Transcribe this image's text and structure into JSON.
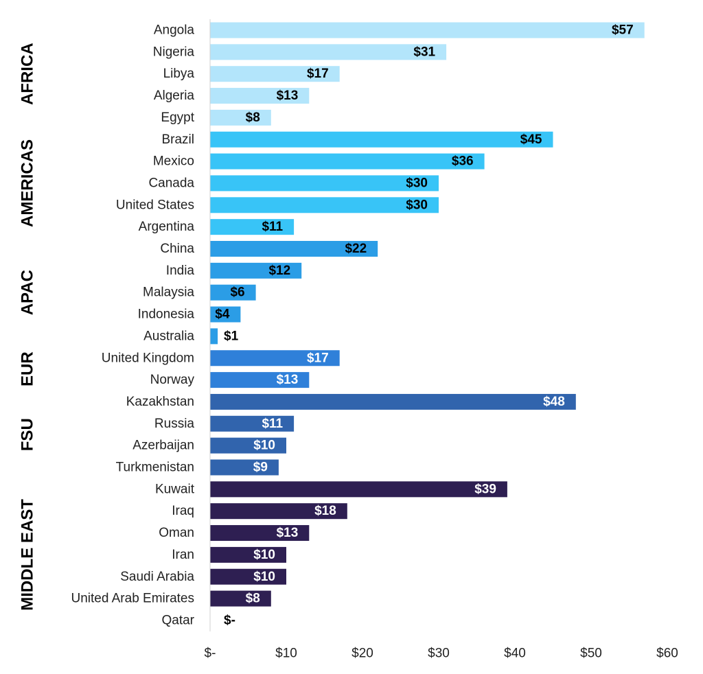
{
  "chart_data": {
    "type": "bar",
    "orientation": "horizontal",
    "title": "",
    "xlabel": "",
    "ylabel": "",
    "xlim": [
      0,
      60
    ],
    "x_ticks": [
      0,
      10,
      20,
      30,
      40,
      50,
      60
    ],
    "x_tick_labels": [
      "$-",
      "$10",
      "$20",
      "$30",
      "$40",
      "$50",
      "$60"
    ],
    "grid": false,
    "legend": "none",
    "groups": [
      {
        "name": "AFRICA",
        "color": "#b3e5fb",
        "label_color": "#000000",
        "items": [
          {
            "category": "Angola",
            "value": 57,
            "label": "$57"
          },
          {
            "category": "Nigeria",
            "value": 31,
            "label": "$31"
          },
          {
            "category": "Libya",
            "value": 17,
            "label": "$17"
          },
          {
            "category": "Algeria",
            "value": 13,
            "label": "$13"
          },
          {
            "category": "Egypt",
            "value": 8,
            "label": "$8"
          }
        ]
      },
      {
        "name": "AMERICAS",
        "color": "#38c4f7",
        "label_color": "#000000",
        "items": [
          {
            "category": "Brazil",
            "value": 45,
            "label": "$45"
          },
          {
            "category": "Mexico",
            "value": 36,
            "label": "$36"
          },
          {
            "category": "Canada",
            "value": 30,
            "label": "$30"
          },
          {
            "category": "United States",
            "value": 30,
            "label": "$30"
          },
          {
            "category": "Argentina",
            "value": 11,
            "label": "$11"
          }
        ]
      },
      {
        "name": "APAC",
        "color": "#2b9de6",
        "label_color": "#000000",
        "items": [
          {
            "category": "China",
            "value": 22,
            "label": "$22"
          },
          {
            "category": "India",
            "value": 12,
            "label": "$12"
          },
          {
            "category": "Malaysia",
            "value": 6,
            "label": "$6"
          },
          {
            "category": "Indonesia",
            "value": 4,
            "label": "$4"
          },
          {
            "category": "Australia",
            "value": 1,
            "label": "$1"
          }
        ]
      },
      {
        "name": "EUR",
        "color": "#2f80d9",
        "label_color": "#ffffff",
        "items": [
          {
            "category": "United Kingdom",
            "value": 17,
            "label": "$17"
          },
          {
            "category": "Norway",
            "value": 13,
            "label": "$13"
          }
        ]
      },
      {
        "name": "FSU",
        "color": "#3164ad",
        "label_color": "#ffffff",
        "items": [
          {
            "category": "Kazakhstan",
            "value": 48,
            "label": "$48"
          },
          {
            "category": "Russia",
            "value": 11,
            "label": "$11"
          },
          {
            "category": "Azerbaijan",
            "value": 10,
            "label": "$10"
          },
          {
            "category": "Turkmenistan",
            "value": 9,
            "label": "$9"
          }
        ]
      },
      {
        "name": "MIDDLE EAST",
        "color": "#2e1f52",
        "label_color": "#ffffff",
        "items": [
          {
            "category": "Kuwait",
            "value": 39,
            "label": "$39"
          },
          {
            "category": "Iraq",
            "value": 18,
            "label": "$18"
          },
          {
            "category": "Oman",
            "value": 13,
            "label": "$13"
          },
          {
            "category": "Iran",
            "value": 10,
            "label": "$10"
          },
          {
            "category": "Saudi Arabia",
            "value": 10,
            "label": "$10"
          },
          {
            "category": "United Arab Emirates",
            "value": 8,
            "label": "$8"
          },
          {
            "category": "Qatar",
            "value": 0,
            "label": "$-"
          }
        ]
      }
    ]
  }
}
